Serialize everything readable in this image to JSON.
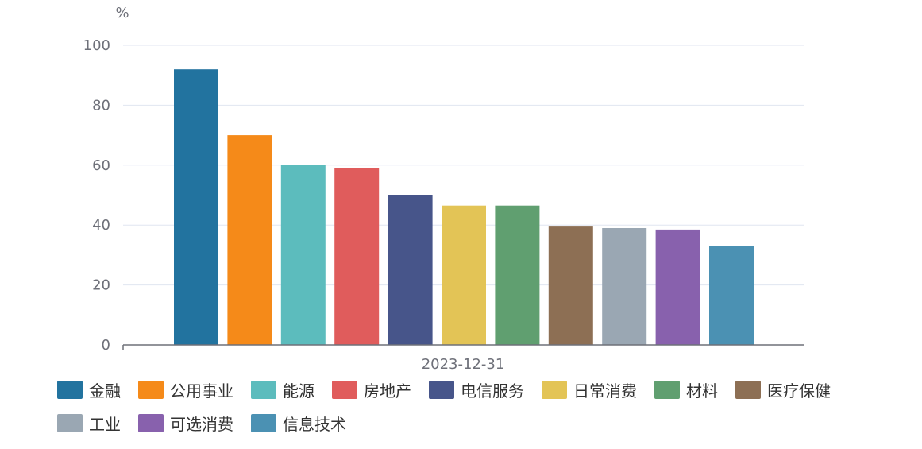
{
  "chart_data": {
    "type": "bar",
    "ylabel": "%",
    "ylim": [
      0,
      100
    ],
    "yticks": [
      0,
      20,
      40,
      60,
      80,
      100
    ],
    "categories": [
      "2023-12-31"
    ],
    "grid": true,
    "legend_position": "bottom",
    "series": [
      {
        "name": "金融",
        "values": [
          92
        ],
        "color": "#22739f"
      },
      {
        "name": "公用事业",
        "values": [
          70
        ],
        "color": "#f58a19"
      },
      {
        "name": "能源",
        "values": [
          60
        ],
        "color": "#5cbcbd"
      },
      {
        "name": "房地产",
        "values": [
          59
        ],
        "color": "#e05c5c"
      },
      {
        "name": "电信服务",
        "values": [
          50
        ],
        "color": "#47558a"
      },
      {
        "name": "日常消费",
        "values": [
          46.5
        ],
        "color": "#e3c456"
      },
      {
        "name": "材料",
        "values": [
          46.5
        ],
        "color": "#609f70"
      },
      {
        "name": "医疗保健",
        "values": [
          39.5
        ],
        "color": "#8d6f54"
      },
      {
        "name": "工业",
        "values": [
          39
        ],
        "color": "#9aa7b3"
      },
      {
        "name": "可选消费",
        "values": [
          38.5
        ],
        "color": "#8861ad"
      },
      {
        "name": "信息技术",
        "values": [
          33
        ],
        "color": "#4b91b3"
      }
    ]
  }
}
